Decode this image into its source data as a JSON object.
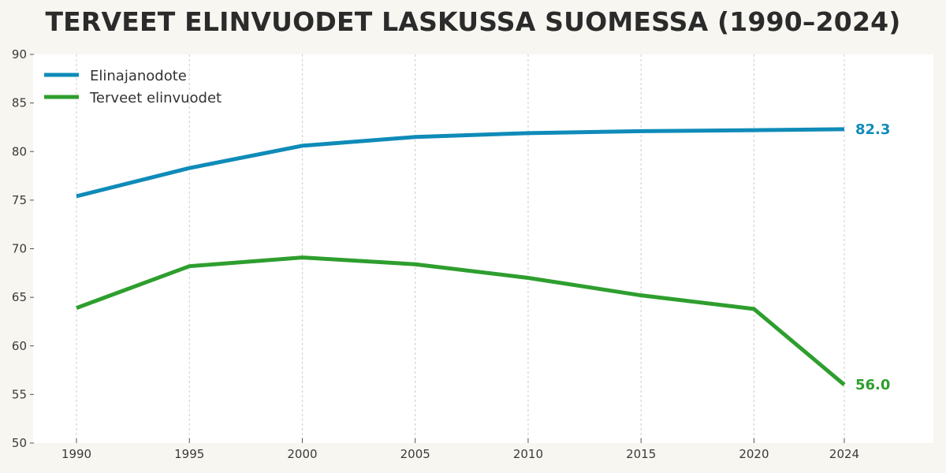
{
  "title": "TERVEET ELINVUODET LASKUSSA SUOMESSA (1990–2024)",
  "colors": {
    "background": "#f7f6f1",
    "plot_background": "#ffffff",
    "life_expectancy": "#0f8bb8",
    "healthy_years": "#2e9e2e",
    "grid": "#cccccc",
    "text": "#2b2b2b"
  },
  "legend": {
    "items": [
      {
        "label": "Elinajanodote",
        "color": "#0f8bb8"
      },
      {
        "label": "Terveet elinvuodet",
        "color": "#2e9e2e"
      }
    ]
  },
  "end_labels": {
    "life_expectancy": "82.3",
    "healthy_years": "56.0"
  },
  "chart_data": {
    "type": "line",
    "title": "TERVEET ELINVUODET LASKUSSA SUOMESSA (1990–2024)",
    "xlabel": "",
    "ylabel": "",
    "x": [
      1990,
      1995,
      2000,
      2005,
      2010,
      2015,
      2020,
      2024
    ],
    "x_tick_labels": [
      "1990",
      "1995",
      "2000",
      "2005",
      "2010",
      "2015",
      "2020",
      "2024"
    ],
    "y_ticks": [
      50,
      55,
      60,
      65,
      70,
      75,
      80,
      85,
      90
    ],
    "y_tick_labels": [
      "50",
      "55",
      "60",
      "65",
      "70",
      "75",
      "80",
      "85",
      "90"
    ],
    "ylim": [
      50,
      90
    ],
    "grid": {
      "x": true,
      "y": false,
      "style": "dashed"
    },
    "legend_position": "upper left",
    "series": [
      {
        "name": "Elinajanodote",
        "color": "#0f8bb8",
        "values": [
          75.4,
          78.3,
          80.6,
          81.5,
          81.9,
          82.1,
          82.2,
          82.3
        ],
        "end_label": "82.3"
      },
      {
        "name": "Terveet elinvuodet",
        "color": "#2e9e2e",
        "values": [
          63.9,
          68.2,
          69.1,
          68.4,
          67.0,
          65.2,
          63.8,
          56.0
        ],
        "end_label": "56.0"
      }
    ]
  }
}
